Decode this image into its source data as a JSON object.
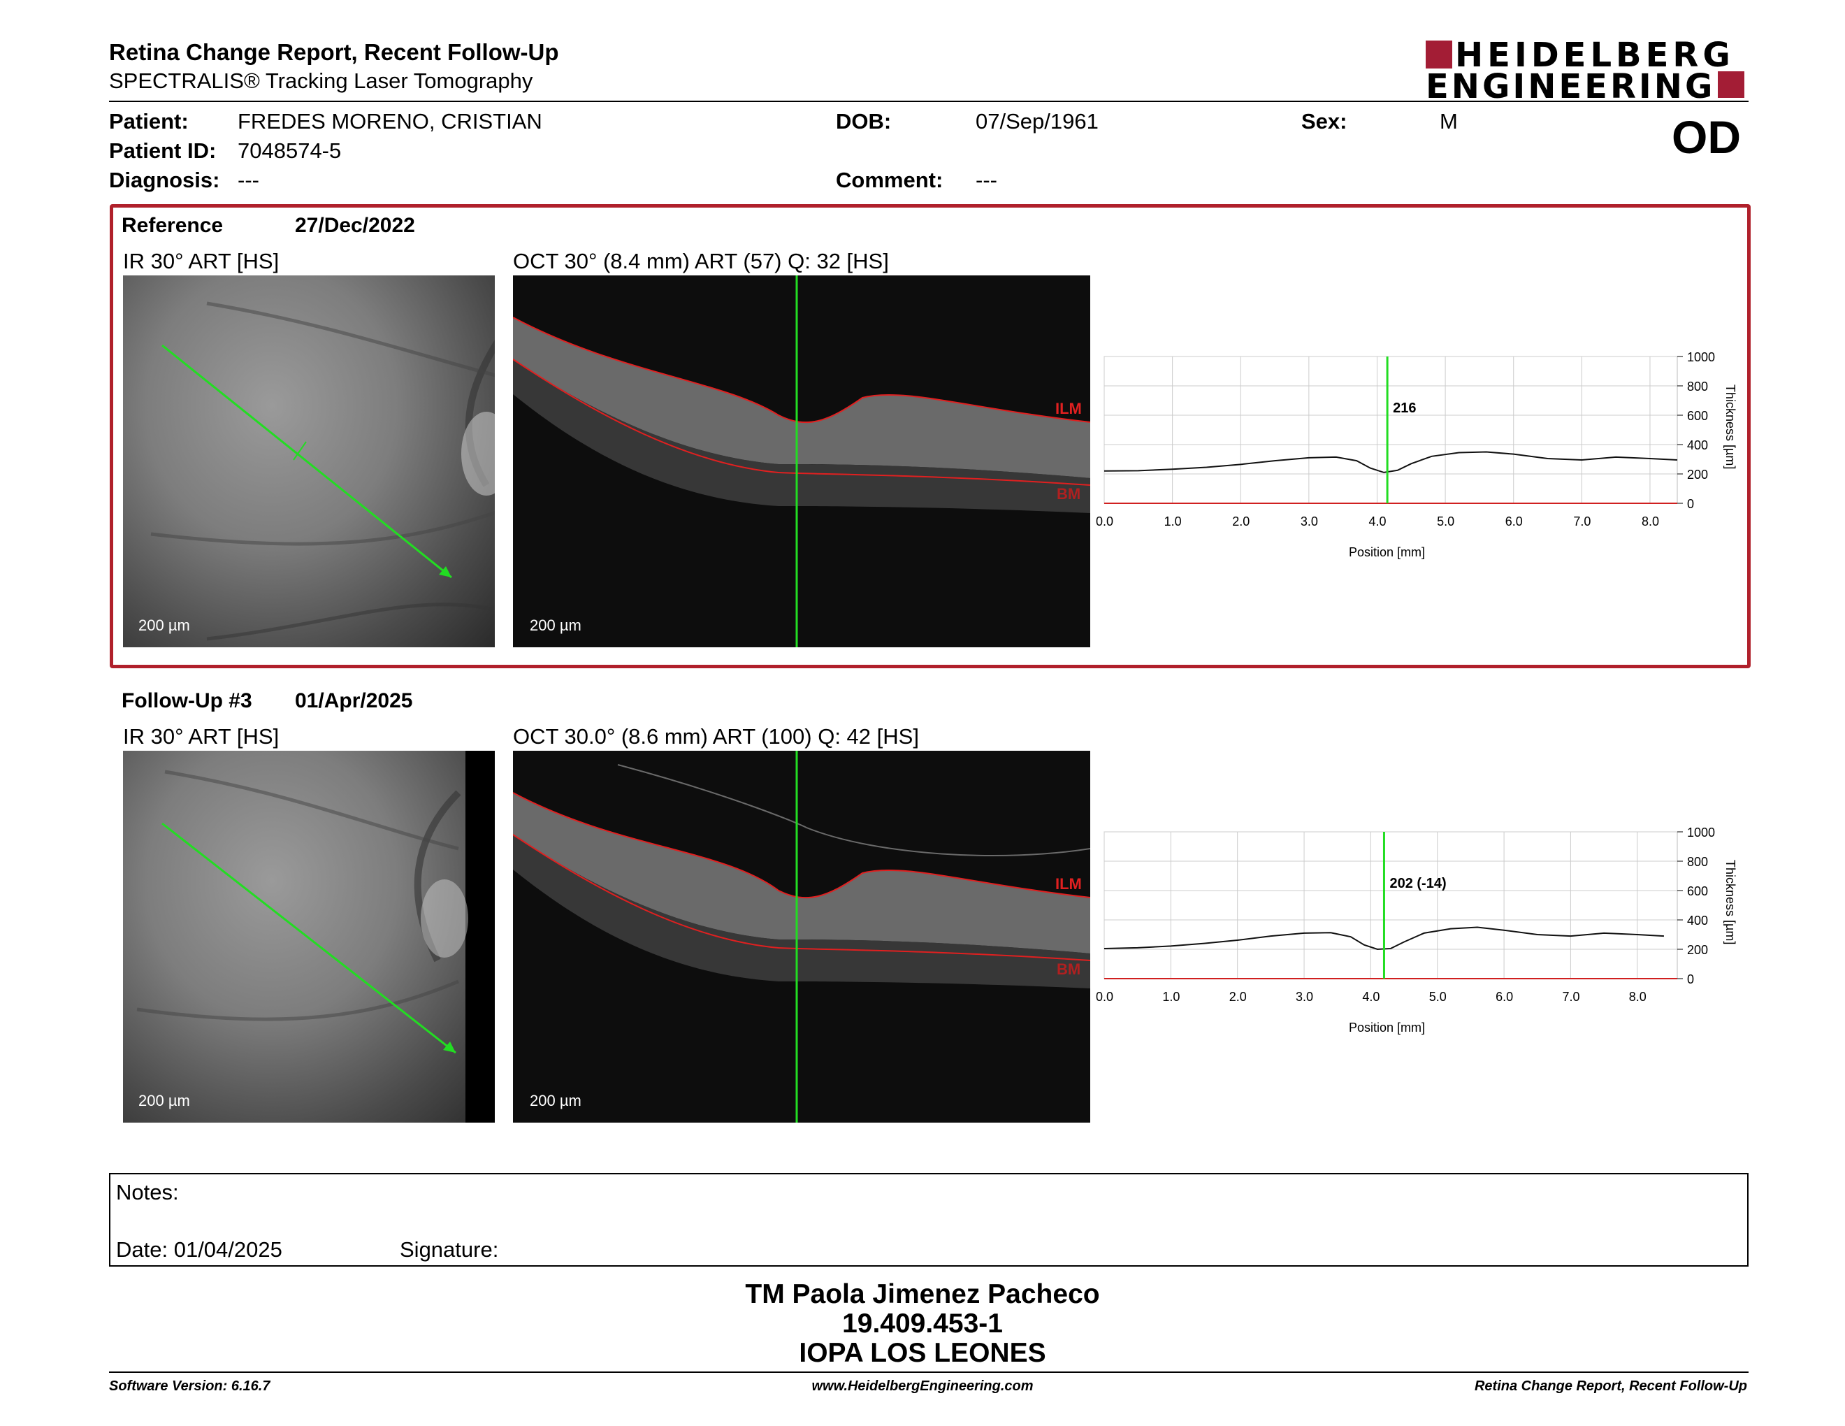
{
  "header": {
    "title": "Retina Change Report, Recent Follow-Up",
    "subtitle": "SPECTRALIS® Tracking Laser Tomography",
    "logo_line1": "HEIDELBERG",
    "logo_line2": "ENGINEERING",
    "eye": "OD"
  },
  "patient": {
    "name_label": "Patient:",
    "name": "FREDES MORENO, CRISTIAN",
    "id_label": "Patient ID:",
    "id": "7048574-5",
    "diagnosis_label": "Diagnosis:",
    "diagnosis": "---",
    "dob_label": "DOB:",
    "dob": "07/Sep/1961",
    "comment_label": "Comment:",
    "comment": "---",
    "sex_label": "Sex:",
    "sex": "M"
  },
  "colors": {
    "frame": "#b0202b",
    "scan_line": "#22dd22",
    "layer": "#e02020",
    "logo": "#a31d35"
  },
  "reference": {
    "label": "Reference",
    "date": "27/Dec/2022",
    "ir_title": "IR 30° ART [HS]",
    "oct_title": "OCT 30° (8.4 mm) ART (57) Q: 32 [HS]",
    "ir_scale": "200 µm",
    "oct_scale": "200 µm",
    "ilm": "ILM",
    "bm": "BM"
  },
  "followup": {
    "label": "Follow-Up #3",
    "date": "01/Apr/2025",
    "ir_title": "IR 30° ART [HS]",
    "oct_title": "OCT 30.0° (8.6 mm) ART (100) Q: 42 [HS]",
    "ir_scale": "200 µm",
    "oct_scale": "200 µm",
    "ilm": "ILM",
    "bm": "BM"
  },
  "chart_data": [
    {
      "type": "line",
      "xlabel": "Position [mm]",
      "ylabel": "Thickness [µm]",
      "xlim": [
        0,
        8.4
      ],
      "ylim": [
        0,
        1000
      ],
      "x_ticks": [
        "0.0",
        "1.0",
        "2.0",
        "3.0",
        "4.0",
        "5.0",
        "6.0",
        "7.0",
        "8.0"
      ],
      "y_ticks": [
        "0",
        "200",
        "400",
        "600",
        "800",
        "1000"
      ],
      "cursor_x": 4.15,
      "cursor_label": "216",
      "grid": true,
      "series": [
        {
          "x": [
            0,
            0.5,
            1,
            1.5,
            2,
            2.5,
            3,
            3.4,
            3.7,
            3.9,
            4.1,
            4.3,
            4.5,
            4.8,
            5.2,
            5.6,
            6,
            6.5,
            7,
            7.5,
            8,
            8.4
          ],
          "y": [
            220,
            222,
            232,
            245,
            265,
            290,
            310,
            315,
            290,
            240,
            210,
            225,
            270,
            320,
            345,
            350,
            335,
            305,
            295,
            315,
            305,
            295
          ]
        }
      ]
    },
    {
      "type": "line",
      "xlabel": "Position [mm]",
      "ylabel": "Thickness [µm]",
      "xlim": [
        0,
        8.6
      ],
      "ylim": [
        0,
        1000
      ],
      "x_ticks": [
        "0.0",
        "1.0",
        "2.0",
        "3.0",
        "4.0",
        "5.0",
        "6.0",
        "7.0",
        "8.0"
      ],
      "y_ticks": [
        "0",
        "200",
        "400",
        "600",
        "800",
        "1000"
      ],
      "cursor_x": 4.2,
      "cursor_label": "202 (-14)",
      "grid": true,
      "series": [
        {
          "x": [
            0,
            0.5,
            1,
            1.5,
            2,
            2.5,
            3,
            3.4,
            3.7,
            3.9,
            4.1,
            4.3,
            4.5,
            4.8,
            5.2,
            5.6,
            6,
            6.5,
            7,
            7.5,
            8,
            8.4
          ],
          "y": [
            205,
            210,
            222,
            240,
            262,
            290,
            310,
            313,
            285,
            230,
            200,
            205,
            250,
            310,
            340,
            350,
            330,
            300,
            290,
            310,
            300,
            290
          ]
        }
      ]
    }
  ],
  "notes": {
    "notes_label": "Notes:",
    "date_label": "Date: 01/04/2025",
    "signature_label": "Signature:"
  },
  "signer": {
    "name": "TM Paola Jimenez Pacheco",
    "id": "19.409.453-1",
    "institution": "IOPA LOS LEONES"
  },
  "footer": {
    "left": "Software Version: 6.16.7",
    "center": "www.HeidelbergEngineering.com",
    "right": "Retina Change Report, Recent Follow-Up"
  }
}
